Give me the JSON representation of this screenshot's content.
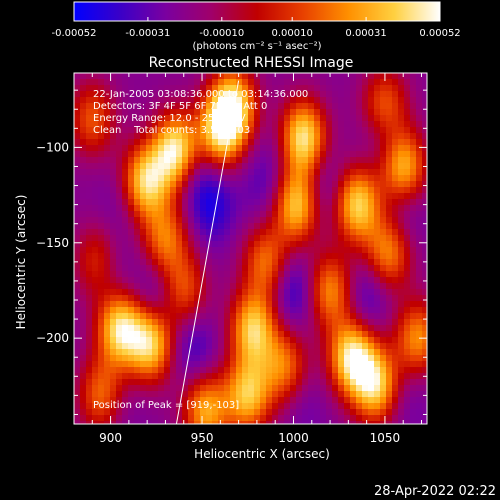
{
  "colorbar": {
    "tick_labels": [
      "-0.00052",
      "-0.00031",
      "-0.00010",
      "0.00010",
      "0.00031",
      "0.00052"
    ],
    "tick_values": [
      -0.00052,
      -0.00031,
      -0.0001,
      0.0001,
      0.00031,
      0.00052
    ],
    "range": [
      -0.00052,
      0.00052
    ],
    "units_label": "(photons cm⁻² s⁻¹ asec⁻²)",
    "colors": [
      "#0000ff",
      "#3a00c8",
      "#7a00a0",
      "#a0006a",
      "#c00000",
      "#e84000",
      "#ff9000",
      "#ffd040",
      "#ffffff"
    ]
  },
  "chart_data": {
    "type": "heatmap",
    "title": "Reconstructed RHESSI Image",
    "xlabel": "Heliocentric X (arcsec)",
    "ylabel": "Heliocentric Y (arcsec)",
    "xlim": [
      880,
      1073
    ],
    "ylim": [
      -245,
      -61
    ],
    "xticks": [
      900,
      950,
      1000,
      1050
    ],
    "yticks": [
      -100,
      -150,
      -200
    ],
    "annotations": [
      "22-Jan-2005 03:08:36.000 to 03:14:36.000",
      "Detectors: 3F 4F 5F 6F 7F 8F, Att 0",
      "Energy Range: 12.0 - 25.0 keV",
      "Clean    Total counts: 3.58E+03"
    ],
    "peak_label": "Position of Peak = [919,-103]",
    "peak_position": [
      919,
      -103
    ],
    "limb_line": {
      "x": [
        936,
        970
      ],
      "y": [
        -245,
        -65
      ]
    },
    "sources": [
      {
        "x": 936,
        "y": -102,
        "value": 0.00052
      },
      {
        "x": 919,
        "y": -118,
        "value": 0.0004
      },
      {
        "x": 967,
        "y": -78,
        "value": 0.0004
      },
      {
        "x": 960,
        "y": -92,
        "value": 0.00035
      },
      {
        "x": 1005,
        "y": -95,
        "value": 0.00048
      },
      {
        "x": 1002,
        "y": -130,
        "value": 0.0004
      },
      {
        "x": 1035,
        "y": -130,
        "value": 0.0004
      },
      {
        "x": 1060,
        "y": -110,
        "value": 0.00035
      },
      {
        "x": 1052,
        "y": -155,
        "value": 0.00025
      },
      {
        "x": 930,
        "y": -148,
        "value": 0.0002
      },
      {
        "x": 905,
        "y": -195,
        "value": 0.00042
      },
      {
        "x": 922,
        "y": -203,
        "value": 0.0004
      },
      {
        "x": 978,
        "y": -195,
        "value": 0.00038
      },
      {
        "x": 1032,
        "y": -210,
        "value": 0.00045
      },
      {
        "x": 1045,
        "y": -225,
        "value": 0.00038
      },
      {
        "x": 975,
        "y": -230,
        "value": 0.00035
      },
      {
        "x": 952,
        "y": -238,
        "value": 0.0003
      },
      {
        "x": 1020,
        "y": -175,
        "value": 0.00025
      },
      {
        "x": 895,
        "y": -230,
        "value": 0.0002
      },
      {
        "x": 1068,
        "y": -200,
        "value": 0.00025
      },
      {
        "x": 995,
        "y": -215,
        "value": 0.0002
      },
      {
        "x": 940,
        "y": -175,
        "value": 0.00015
      },
      {
        "x": 1050,
        "y": -78,
        "value": 0.00018
      },
      {
        "x": 985,
        "y": -160,
        "value": 0.0002
      },
      {
        "x": 890,
        "y": -85,
        "value": 0.00015
      },
      {
        "x": 893,
        "y": -160,
        "value": 0.00012
      }
    ],
    "negative_regions": [
      {
        "x": 945,
        "y": -110,
        "value": -0.0004
      },
      {
        "x": 955,
        "y": -130,
        "value": -0.00045
      },
      {
        "x": 1015,
        "y": -122,
        "value": -0.0004
      },
      {
        "x": 985,
        "y": -120,
        "value": -0.00035
      },
      {
        "x": 1060,
        "y": -135,
        "value": -0.00035
      },
      {
        "x": 905,
        "y": -130,
        "value": -0.0003
      },
      {
        "x": 925,
        "y": -178,
        "value": -0.0004
      },
      {
        "x": 945,
        "y": -205,
        "value": -0.0004
      },
      {
        "x": 1000,
        "y": -175,
        "value": -0.00045
      },
      {
        "x": 1040,
        "y": -178,
        "value": -0.0004
      },
      {
        "x": 995,
        "y": -100,
        "value": -0.0003
      },
      {
        "x": 900,
        "y": -165,
        "value": -0.00035
      },
      {
        "x": 1062,
        "y": -232,
        "value": -0.0003
      },
      {
        "x": 905,
        "y": -235,
        "value": -0.0003
      },
      {
        "x": 1005,
        "y": -235,
        "value": -0.0003
      },
      {
        "x": 1050,
        "y": -95,
        "value": -0.00035
      }
    ]
  },
  "footer": {
    "timestamp": "28-Apr-2022 02:22"
  }
}
